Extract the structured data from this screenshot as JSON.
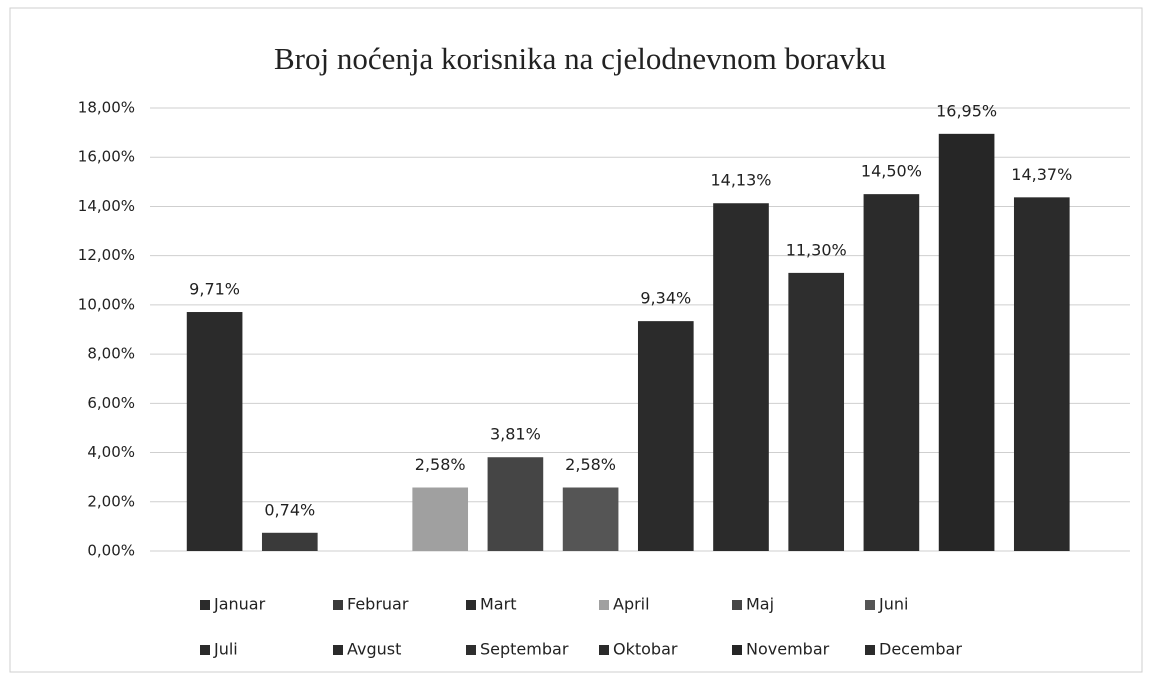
{
  "chart_data": {
    "type": "bar",
    "title": "Broj noćenja korisnika na cjelodnevnom boravku",
    "categories": [
      "Januar",
      "Februar",
      "Mart",
      "April",
      "Maj",
      "Juni",
      "Juli",
      "Avgust",
      "Septembar",
      "Oktobar",
      "Novembar",
      "Decembar"
    ],
    "values": [
      9.71,
      0.74,
      null,
      2.58,
      3.81,
      2.58,
      9.34,
      14.13,
      11.3,
      14.5,
      16.95,
      14.37
    ],
    "value_labels": [
      "9,71%",
      "0,74%",
      null,
      "2,58%",
      "3,81%",
      "2,58%",
      "9,34%",
      "14,13%",
      "11,30%",
      "14,50%",
      "16,95%",
      "14,37%"
    ],
    "colors": [
      "#2b2b2b",
      "#3a3a3a",
      "#2b2b2b",
      "#a0a0a0",
      "#454545",
      "#555555",
      "#2b2b2b",
      "#2b2b2b",
      "#2e2e2e",
      "#2b2b2b",
      "#262626",
      "#2b2b2b"
    ],
    "ylim": [
      0,
      18
    ],
    "yticks": [
      {
        "value": 0,
        "label": "0,00%"
      },
      {
        "value": 2,
        "label": "2,00%"
      },
      {
        "value": 4,
        "label": "4,00%"
      },
      {
        "value": 6,
        "label": "6,00%"
      },
      {
        "value": 8,
        "label": "8,00%"
      },
      {
        "value": 10,
        "label": "10,00%"
      },
      {
        "value": 12,
        "label": "12,00%"
      },
      {
        "value": 14,
        "label": "14,00%"
      },
      {
        "value": 16,
        "label": "16,00%"
      },
      {
        "value": 18,
        "label": "18,00%"
      }
    ],
    "grid": true,
    "legend": "bottom"
  }
}
